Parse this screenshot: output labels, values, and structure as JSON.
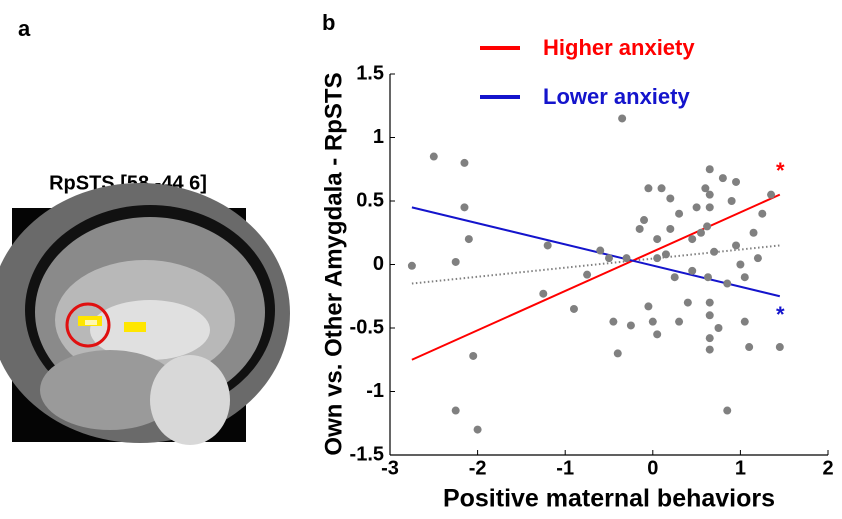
{
  "panel_a": {
    "label": "a",
    "title": "RpSTS [58 -44 6]"
  },
  "chart_data": {
    "type": "scatter",
    "panel_label": "b",
    "x_label": "Positive maternal behaviors",
    "y_label": "Own vs. Other Amygdala - RpSTS",
    "xlim": [
      -3,
      2
    ],
    "xticks": [
      -3,
      -2,
      -1,
      0,
      1,
      2
    ],
    "ylim": [
      -1.5,
      1.5
    ],
    "yticks": [
      -1.5,
      -1,
      -0.5,
      0,
      0.5,
      1,
      1.5
    ],
    "points": {
      "color": "#808080",
      "x": [
        -2.75,
        -2.5,
        -2.15,
        -2.15,
        -2.1,
        -2.25,
        -2.05,
        -2.25,
        -2.0,
        -1.25,
        -1.2,
        -0.9,
        -0.75,
        -0.6,
        -0.5,
        -0.45,
        -0.4,
        -0.3,
        -0.25,
        -0.35,
        -0.15,
        -0.1,
        -0.05,
        0.0,
        -0.05,
        0.05,
        0.05,
        0.05,
        0.1,
        0.15,
        0.2,
        0.2,
        0.25,
        0.3,
        0.3,
        0.4,
        0.45,
        0.45,
        0.5,
        0.55,
        0.6,
        0.62,
        0.63,
        0.65,
        0.65,
        0.65,
        0.65,
        0.65,
        0.65,
        0.65,
        0.7,
        0.75,
        0.8,
        0.85,
        0.85,
        0.9,
        0.95,
        0.95,
        1.0,
        1.05,
        1.05,
        1.1,
        1.15,
        1.2,
        1.35,
        1.45,
        1.25
      ],
      "y": [
        -0.01,
        0.85,
        0.8,
        0.45,
        0.2,
        0.02,
        -0.72,
        -1.15,
        -1.3,
        -0.23,
        0.15,
        -0.35,
        -0.08,
        0.11,
        0.05,
        -0.45,
        -0.7,
        0.05,
        -0.48,
        1.15,
        0.28,
        0.35,
        0.6,
        -0.45,
        -0.33,
        0.05,
        0.2,
        -0.55,
        0.6,
        0.08,
        0.28,
        0.52,
        -0.1,
        0.4,
        -0.45,
        -0.3,
        -0.05,
        0.2,
        0.45,
        0.25,
        0.6,
        0.3,
        -0.1,
        0.75,
        0.55,
        0.45,
        -0.3,
        -0.4,
        -0.58,
        -0.67,
        0.1,
        -0.5,
        0.68,
        -0.15,
        -1.15,
        0.5,
        0.15,
        0.65,
        0.0,
        -0.1,
        -0.45,
        -0.65,
        0.25,
        0.05,
        0.55,
        -0.65,
        0.4
      ]
    },
    "series": [
      {
        "name": "Higher anxiety",
        "color": "#ff0000",
        "x": [
          -2.75,
          1.45
        ],
        "values": [
          -0.75,
          0.55
        ]
      },
      {
        "name": "Lower anxiety",
        "color": "#1414cc",
        "x": [
          -2.75,
          1.45
        ],
        "values": [
          0.45,
          -0.25
        ]
      }
    ],
    "overall_fit": {
      "color": "#808080",
      "x": [
        -2.75,
        1.45
      ],
      "values": [
        -0.15,
        0.15
      ]
    },
    "annotations": [
      {
        "text": "*",
        "color": "#ff0000"
      },
      {
        "text": "*",
        "color": "#1414cc"
      }
    ],
    "legend": "top"
  }
}
